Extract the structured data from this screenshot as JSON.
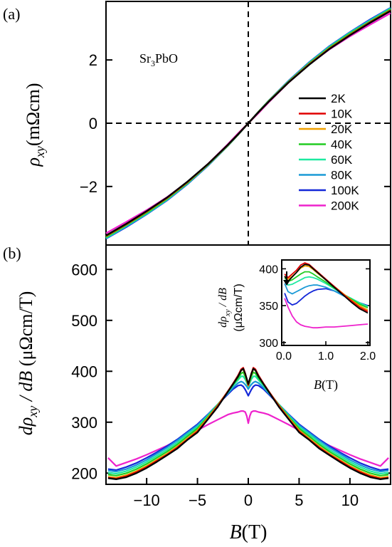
{
  "chart_data": [
    {
      "panel_label": "(a)",
      "type": "line",
      "annotation": "Sr3PbO",
      "annotation_parts": {
        "a": "Sr",
        "sub": "3",
        "b": "PbO"
      },
      "ylabel_parts": {
        "rho": "ρ",
        "sub": "xy",
        "unit": "(mΩcm)"
      },
      "xlim": [
        -14,
        14
      ],
      "ylim": [
        -3.85,
        3.85
      ],
      "yticks": [
        -2,
        0,
        2
      ],
      "ytick_labels": [
        "−2",
        "0",
        "2"
      ],
      "reference_lines": {
        "horizontal_dashed_at_y": 0,
        "vertical_dashed_at_x": 0
      },
      "legend_placement": "right",
      "series": [
        {
          "name": "2K",
          "color": "#000000",
          "x": [
            -14,
            -12,
            -10,
            -8,
            -6,
            -4,
            -2,
            -1,
            0,
            1,
            2,
            4,
            6,
            8,
            10,
            12,
            14
          ],
          "y": [
            -3.55,
            -3.18,
            -2.78,
            -2.35,
            -1.85,
            -1.3,
            -0.68,
            -0.35,
            0,
            0.35,
            0.68,
            1.3,
            1.85,
            2.35,
            2.78,
            3.18,
            3.55
          ]
        },
        {
          "name": "10K",
          "color": "#e00000",
          "x": [
            -14,
            -12,
            -10,
            -8,
            -6,
            -4,
            -2,
            -1,
            0,
            1,
            2,
            4,
            6,
            8,
            10,
            12,
            14
          ],
          "y": [
            -3.56,
            -3.19,
            -2.79,
            -2.36,
            -1.86,
            -1.3,
            -0.68,
            -0.35,
            0,
            0.35,
            0.68,
            1.3,
            1.86,
            2.36,
            2.79,
            3.19,
            3.56
          ]
        },
        {
          "name": "20K",
          "color": "#f0a000",
          "x": [
            -14,
            -12,
            -10,
            -8,
            -6,
            -4,
            -2,
            -1,
            0,
            1,
            2,
            4,
            6,
            8,
            10,
            12,
            14
          ],
          "y": [
            -3.57,
            -3.2,
            -2.8,
            -2.37,
            -1.87,
            -1.31,
            -0.69,
            -0.35,
            0,
            0.35,
            0.69,
            1.31,
            1.87,
            2.37,
            2.8,
            3.2,
            3.57
          ]
        },
        {
          "name": "40K",
          "color": "#22cc22",
          "x": [
            -14,
            -12,
            -10,
            -8,
            -6,
            -4,
            -2,
            -1,
            0,
            1,
            2,
            4,
            6,
            8,
            10,
            12,
            14
          ],
          "y": [
            -3.6,
            -3.22,
            -2.83,
            -2.39,
            -1.89,
            -1.32,
            -0.7,
            -0.36,
            0,
            0.36,
            0.7,
            1.32,
            1.89,
            2.39,
            2.83,
            3.22,
            3.6
          ]
        },
        {
          "name": "60K",
          "color": "#1de9a0",
          "x": [
            -14,
            -12,
            -10,
            -8,
            -6,
            -4,
            -2,
            -1,
            0,
            1,
            2,
            4,
            6,
            8,
            10,
            12,
            14
          ],
          "y": [
            -3.62,
            -3.24,
            -2.85,
            -2.41,
            -1.9,
            -1.33,
            -0.7,
            -0.36,
            0,
            0.36,
            0.7,
            1.33,
            1.9,
            2.41,
            2.85,
            3.24,
            3.62
          ]
        },
        {
          "name": "80K",
          "color": "#1a9ad6",
          "x": [
            -14,
            -12,
            -10,
            -8,
            -6,
            -4,
            -2,
            -1,
            0,
            1,
            2,
            4,
            6,
            8,
            10,
            12,
            14
          ],
          "y": [
            -3.64,
            -3.26,
            -2.87,
            -2.43,
            -1.92,
            -1.34,
            -0.71,
            -0.36,
            0,
            0.36,
            0.71,
            1.34,
            1.92,
            2.43,
            2.87,
            3.26,
            3.64
          ]
        },
        {
          "name": "100K",
          "color": "#1428d8",
          "x": [
            -14,
            -12,
            -10,
            -8,
            -6,
            -4,
            -2,
            -1,
            0,
            1,
            2,
            4,
            6,
            8,
            10,
            12,
            14
          ],
          "y": [
            -3.65,
            -3.28,
            -2.88,
            -2.44,
            -1.93,
            -1.35,
            -0.71,
            -0.36,
            0,
            0.36,
            0.71,
            1.35,
            1.93,
            2.44,
            2.88,
            3.28,
            3.65
          ]
        },
        {
          "name": "200K",
          "color": "#ee22cc",
          "x": [
            -14,
            -12,
            -10,
            -8,
            -6,
            -4,
            -2,
            -1,
            0,
            1,
            2,
            4,
            6,
            8,
            10,
            12,
            14
          ],
          "y": [
            -3.48,
            -3.12,
            -2.75,
            -2.34,
            -1.86,
            -1.3,
            -0.66,
            -0.32,
            0,
            0.32,
            0.66,
            1.3,
            1.86,
            2.34,
            2.75,
            3.12,
            3.48
          ]
        }
      ]
    },
    {
      "panel_label": "(b)",
      "type": "line",
      "ylabel_parts": {
        "d": "dρ",
        "sub": "xy",
        "mid": " / dB ",
        "unit": "(μΩcm/T)"
      },
      "xlabel_parts": {
        "b": "B",
        "unit": "(T)"
      },
      "xlim": [
        -14,
        14
      ],
      "ylim": [
        178,
        648
      ],
      "xticks": [
        -10,
        -5,
        0,
        5,
        10
      ],
      "xtick_labels": [
        "−10",
        "−5",
        "0",
        "5",
        "10"
      ],
      "yticks": [
        200,
        300,
        400,
        500,
        600
      ],
      "ytick_labels": [
        "200",
        "300",
        "400",
        "500",
        "600"
      ],
      "series": [
        {
          "name": "2K",
          "color": "#000000",
          "x": [
            0,
            0.15,
            0.3,
            0.5,
            0.7,
            1,
            1.5,
            2,
            3,
            4,
            5,
            6,
            7,
            8,
            9,
            10,
            11,
            12,
            13,
            13.8
          ],
          "y": [
            375,
            385,
            395,
            405,
            402,
            390,
            375,
            360,
            330,
            305,
            280,
            265,
            248,
            235,
            222,
            210,
            200,
            192,
            188,
            190
          ]
        },
        {
          "name": "10K",
          "color": "#e00000",
          "x": [
            0,
            0.15,
            0.3,
            0.5,
            0.7,
            1,
            1.5,
            2,
            3,
            4,
            5,
            6,
            7,
            8,
            9,
            10,
            11,
            12,
            13,
            13.8
          ],
          "y": [
            373,
            384,
            396,
            407,
            404,
            392,
            376,
            361,
            332,
            306,
            282,
            266,
            250,
            236,
            224,
            212,
            202,
            194,
            189,
            191
          ]
        },
        {
          "name": "20K",
          "color": "#f0a000",
          "x": [
            0,
            0.15,
            0.3,
            0.5,
            0.7,
            1,
            1.5,
            2,
            3,
            4,
            5,
            6,
            7,
            8,
            9,
            10,
            11,
            12,
            13,
            13.8
          ],
          "y": [
            372,
            383,
            394,
            404,
            402,
            391,
            376,
            361,
            333,
            308,
            284,
            268,
            252,
            238,
            226,
            214,
            204,
            196,
            191,
            193
          ]
        },
        {
          "name": "40K",
          "color": "#22cc22",
          "x": [
            0,
            0.15,
            0.3,
            0.5,
            0.7,
            1,
            1.5,
            2,
            3,
            4,
            5,
            6,
            7,
            8,
            9,
            10,
            11,
            12,
            13,
            13.8
          ],
          "y": [
            372,
            381,
            390,
            398,
            396,
            387,
            374,
            360,
            334,
            310,
            288,
            272,
            256,
            242,
            230,
            218,
            208,
            200,
            195,
            197
          ]
        },
        {
          "name": "60K",
          "color": "#1de9a0",
          "x": [
            0,
            0.15,
            0.3,
            0.5,
            0.7,
            1,
            1.5,
            2,
            3,
            4,
            5,
            6,
            7,
            8,
            9,
            10,
            11,
            12,
            13,
            13.8
          ],
          "y": [
            370,
            377,
            384,
            390,
            390,
            383,
            372,
            359,
            335,
            312,
            291,
            276,
            260,
            246,
            234,
            222,
            212,
            204,
            199,
            201
          ]
        },
        {
          "name": "80K",
          "color": "#1a9ad6",
          "x": [
            0,
            0.15,
            0.3,
            0.5,
            0.7,
            1,
            1.5,
            2,
            3,
            4,
            5,
            6,
            7,
            8,
            9,
            10,
            11,
            12,
            13,
            13.8
          ],
          "y": [
            365,
            370,
            374,
            378,
            380,
            377,
            368,
            357,
            335,
            314,
            294,
            279,
            264,
            250,
            238,
            226,
            216,
            208,
            203,
            205
          ]
        },
        {
          "name": "100K",
          "color": "#1428d8",
          "x": [
            0,
            0.15,
            0.3,
            0.5,
            0.7,
            1,
            1.5,
            2,
            3,
            4,
            5,
            6,
            7,
            8,
            9,
            10,
            11,
            12,
            13,
            13.8
          ],
          "y": [
            352,
            358,
            364,
            370,
            373,
            372,
            365,
            355,
            335,
            315,
            296,
            281,
            266,
            253,
            241,
            230,
            220,
            212,
            206,
            208
          ]
        },
        {
          "name": "200K",
          "color": "#ee22cc",
          "x": [
            0,
            0.15,
            0.3,
            0.5,
            0.7,
            1,
            1.5,
            2,
            3,
            4,
            5,
            6,
            7,
            8,
            9,
            10,
            11,
            12,
            13,
            13.8
          ],
          "y": [
            298,
            312,
            320,
            322,
            322,
            320,
            318,
            315,
            305,
            295,
            284,
            274,
            264,
            254,
            245,
            236,
            228,
            221,
            214,
            230
          ]
        }
      ]
    },
    {
      "panel_label": "inset",
      "type": "line",
      "ylabel_parts": {
        "d": "dρ",
        "sub": "xy",
        "mid": " / dB",
        "unit": "(μΩcm/T)"
      },
      "xlabel_parts": {
        "b": "B",
        "unit": "(T)"
      },
      "xlim": [
        -0.05,
        2.05
      ],
      "ylim": [
        296,
        412
      ],
      "xticks": [
        0.0,
        1.0,
        2.0
      ],
      "xtick_labels": [
        "0.0",
        "1.0",
        "2.0"
      ],
      "yticks": [
        300,
        350,
        400
      ],
      "ytick_labels": [
        "300",
        "350",
        "400"
      ],
      "series": [
        {
          "name": "2K",
          "color": "#000000",
          "x": [
            0.02,
            0.1,
            0.2,
            0.3,
            0.4,
            0.5,
            0.6,
            0.7,
            0.8,
            1.0,
            1.2,
            1.4,
            1.6,
            1.8,
            2.0
          ],
          "y": [
            390,
            383,
            389,
            395,
            402,
            406,
            405,
            400,
            395,
            385,
            375,
            365,
            355,
            346,
            340
          ]
        },
        {
          "name": "10K",
          "color": "#e00000",
          "x": [
            0.02,
            0.1,
            0.2,
            0.3,
            0.4,
            0.5,
            0.6,
            0.7,
            0.8,
            1.0,
            1.2,
            1.4,
            1.6,
            1.8,
            2.0
          ],
          "y": [
            393,
            388,
            393,
            398,
            405,
            408,
            406,
            401,
            396,
            386,
            376,
            366,
            357,
            348,
            342
          ]
        },
        {
          "name": "20K",
          "color": "#f0a000",
          "x": [
            0.02,
            0.1,
            0.2,
            0.3,
            0.4,
            0.5,
            0.6,
            0.7,
            0.8,
            1.0,
            1.2,
            1.4,
            1.6,
            1.8,
            2.0
          ],
          "y": [
            390,
            386,
            390,
            395,
            401,
            404,
            403,
            399,
            394,
            385,
            376,
            367,
            358,
            350,
            344
          ]
        },
        {
          "name": "40K",
          "color": "#22cc22",
          "x": [
            0.02,
            0.1,
            0.2,
            0.3,
            0.4,
            0.5,
            0.6,
            0.7,
            0.8,
            1.0,
            1.2,
            1.4,
            1.6,
            1.8,
            2.0
          ],
          "y": [
            388,
            383,
            385,
            389,
            393,
            396,
            396,
            393,
            389,
            382,
            374,
            366,
            359,
            352,
            347
          ]
        },
        {
          "name": "60K",
          "color": "#1de9a0",
          "x": [
            0.02,
            0.1,
            0.2,
            0.3,
            0.4,
            0.5,
            0.6,
            0.7,
            0.8,
            1.0,
            1.2,
            1.4,
            1.6,
            1.8,
            2.0
          ],
          "y": [
            385,
            378,
            379,
            382,
            385,
            388,
            389,
            388,
            386,
            380,
            373,
            366,
            360,
            354,
            349
          ]
        },
        {
          "name": "80K",
          "color": "#1a9ad6",
          "x": [
            0.02,
            0.1,
            0.2,
            0.3,
            0.4,
            0.5,
            0.6,
            0.7,
            0.8,
            1.0,
            1.2,
            1.4,
            1.6,
            1.8,
            2.0
          ],
          "y": [
            380,
            369,
            366,
            369,
            372,
            375,
            377,
            378,
            378,
            375,
            370,
            364,
            358,
            353,
            349
          ]
        },
        {
          "name": "100K",
          "color": "#1428d8",
          "x": [
            0.02,
            0.1,
            0.2,
            0.3,
            0.4,
            0.5,
            0.6,
            0.7,
            0.8,
            1.0,
            1.2,
            1.4,
            1.6,
            1.8,
            2.0
          ],
          "y": [
            367,
            355,
            351,
            353,
            358,
            363,
            367,
            370,
            372,
            373,
            370,
            365,
            359,
            354,
            350
          ]
        },
        {
          "name": "200K",
          "color": "#ee22cc",
          "x": [
            0.02,
            0.1,
            0.2,
            0.3,
            0.4,
            0.5,
            0.6,
            0.7,
            0.8,
            1.0,
            1.2,
            1.4,
            1.6,
            1.8,
            2.0
          ],
          "y": [
            360,
            348,
            336,
            328,
            324,
            322,
            321,
            320,
            320,
            321,
            321,
            322,
            323,
            324,
            325
          ]
        }
      ]
    }
  ]
}
